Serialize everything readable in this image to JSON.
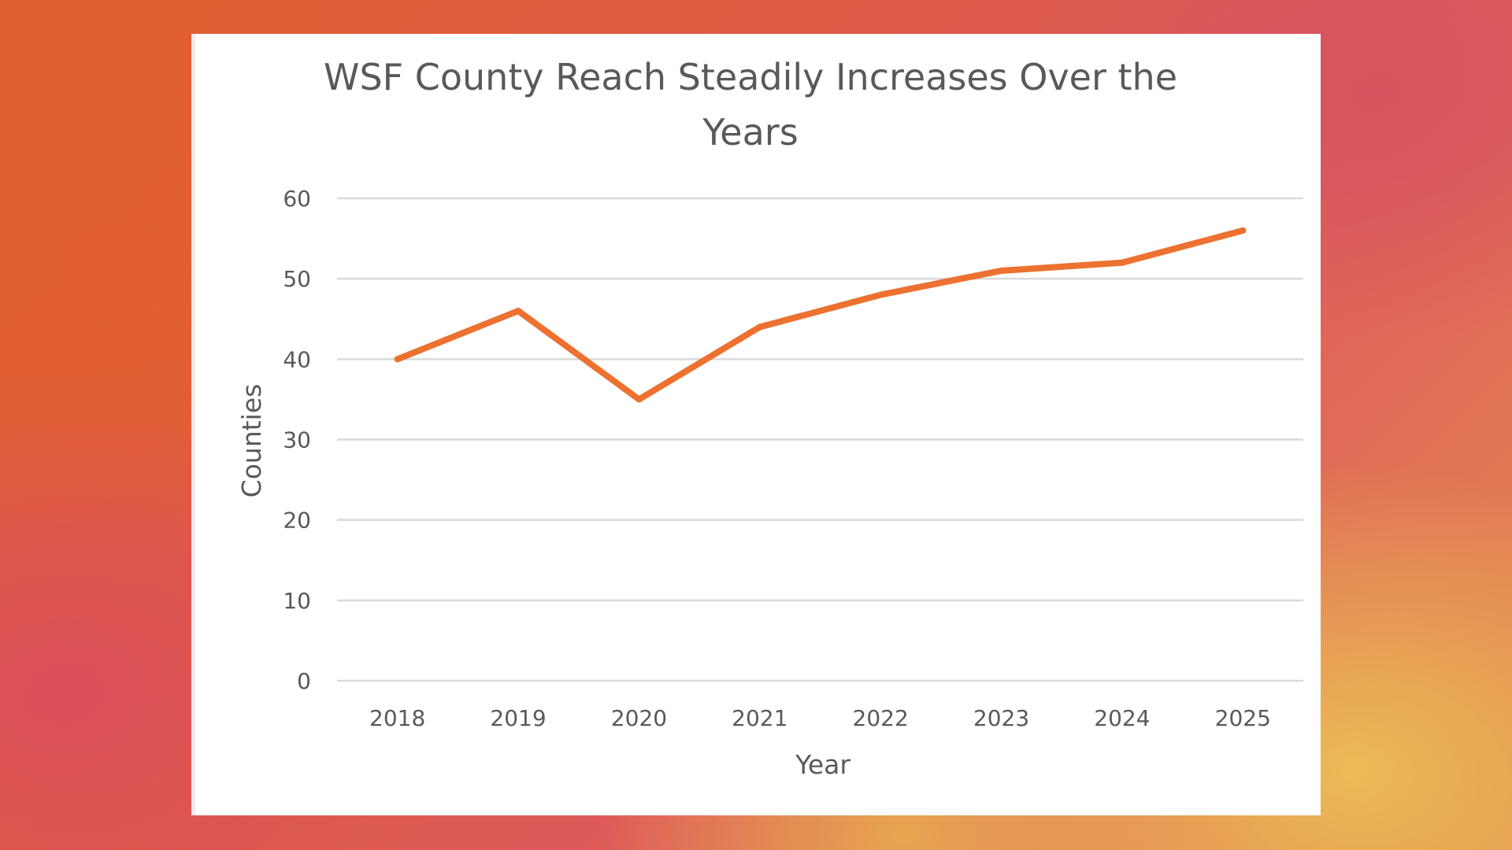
{
  "chart_data": {
    "type": "line",
    "title": "WSF County Reach Steadily Increases Over the Years",
    "xlabel": "Year",
    "ylabel": "Counties",
    "categories": [
      "2018",
      "2019",
      "2020",
      "2021",
      "2022",
      "2023",
      "2024",
      "2025"
    ],
    "series": [
      {
        "name": "Counties",
        "values": [
          40,
          46,
          35,
          44,
          48,
          51,
          52,
          56
        ],
        "color": "#ed7130"
      }
    ],
    "ylim": [
      0,
      60
    ],
    "yticks": [
      0,
      10,
      20,
      30,
      40,
      50,
      60
    ],
    "grid": true,
    "legend": "none"
  },
  "colors": {
    "line": "#ed7130",
    "grid": "#d9d9d9",
    "text": "#595959",
    "card": "#ffffff"
  }
}
